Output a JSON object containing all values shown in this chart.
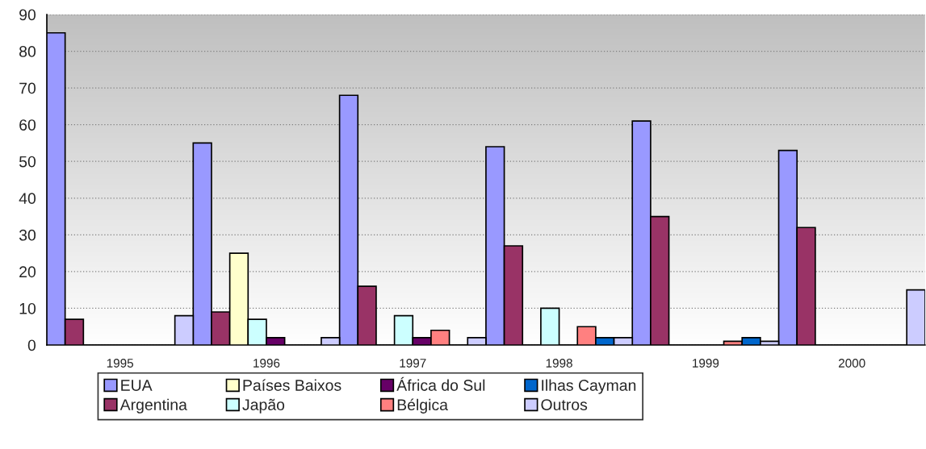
{
  "chart_data": {
    "type": "bar",
    "categories": [
      "1995",
      "1996",
      "1997",
      "1998",
      "1999",
      "2000"
    ],
    "series": [
      {
        "name": "EUA",
        "color": "#9999ff",
        "values": [
          85,
          55,
          68,
          54,
          61,
          53
        ]
      },
      {
        "name": "Argentina",
        "color": "#993366",
        "values": [
          7,
          9,
          16,
          27,
          35,
          32
        ]
      },
      {
        "name": "Países Baixos",
        "color": "#ffffcc",
        "values": [
          0,
          25,
          0,
          0,
          0,
          0
        ]
      },
      {
        "name": "Japão",
        "color": "#ccffff",
        "values": [
          0,
          7,
          8,
          10,
          0,
          0
        ]
      },
      {
        "name": "África do Sul",
        "color": "#660066",
        "values": [
          0,
          2,
          2,
          0,
          0,
          0
        ]
      },
      {
        "name": "Bélgica",
        "color": "#ff8080",
        "values": [
          0,
          0,
          4,
          5,
          1,
          0
        ]
      },
      {
        "name": "Ilhas Cayman",
        "color": "#0066cc",
        "values": [
          0,
          0,
          0,
          2,
          2,
          0
        ]
      },
      {
        "name": "Outros",
        "color": "#ccccff",
        "values": [
          8,
          2,
          2,
          2,
          1,
          15
        ]
      }
    ],
    "ylim": [
      0,
      90
    ],
    "yticks": [
      0,
      10,
      20,
      30,
      40,
      50,
      60,
      70,
      80,
      90
    ],
    "grid": "y",
    "legend": "bottom"
  }
}
